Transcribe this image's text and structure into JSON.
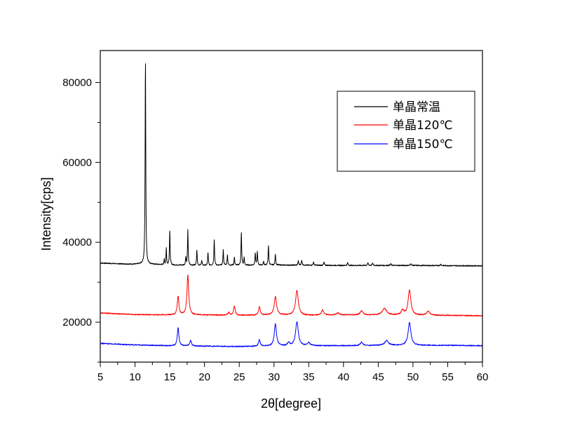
{
  "chart_data": {
    "type": "line",
    "title": "",
    "xlabel": "2θ[degree]",
    "ylabel": "Intensity[cps]",
    "xlim": [
      5,
      60
    ],
    "ylim": [
      10000,
      88000
    ],
    "xticks": [
      5,
      10,
      15,
      20,
      25,
      30,
      35,
      40,
      45,
      50,
      55,
      60
    ],
    "yticks": [
      20000,
      40000,
      60000,
      80000
    ],
    "grid": false,
    "legend_position": "upper-right",
    "series": [
      {
        "name": "单晶常温",
        "color": "#000000",
        "baseline": [
          [
            5,
            34800
          ],
          [
            8,
            34600
          ],
          [
            10,
            34500
          ],
          [
            11,
            34600
          ],
          [
            15,
            34300
          ],
          [
            20,
            34200
          ],
          [
            30,
            34300
          ],
          [
            40,
            34200
          ],
          [
            50,
            34200
          ],
          [
            60,
            34100
          ]
        ],
        "peaks": [
          {
            "x": 11.5,
            "y": 86500,
            "w": 0.08
          },
          {
            "x": 14.2,
            "y": 35700,
            "w": 0.07
          },
          {
            "x": 14.5,
            "y": 38700,
            "w": 0.07
          },
          {
            "x": 15.0,
            "y": 43000,
            "w": 0.08
          },
          {
            "x": 17.3,
            "y": 36300,
            "w": 0.07
          },
          {
            "x": 17.6,
            "y": 43000,
            "w": 0.08
          },
          {
            "x": 18.9,
            "y": 38200,
            "w": 0.08
          },
          {
            "x": 19.6,
            "y": 35500,
            "w": 0.08
          },
          {
            "x": 20.5,
            "y": 37500,
            "w": 0.08
          },
          {
            "x": 21.4,
            "y": 40800,
            "w": 0.08
          },
          {
            "x": 22.7,
            "y": 38100,
            "w": 0.08
          },
          {
            "x": 23.3,
            "y": 36900,
            "w": 0.08
          },
          {
            "x": 24.3,
            "y": 36300,
            "w": 0.08
          },
          {
            "x": 25.3,
            "y": 42600,
            "w": 0.08
          },
          {
            "x": 25.7,
            "y": 36300,
            "w": 0.07
          },
          {
            "x": 27.3,
            "y": 37400,
            "w": 0.08
          },
          {
            "x": 27.6,
            "y": 37700,
            "w": 0.08
          },
          {
            "x": 28.5,
            "y": 35200,
            "w": 0.08
          },
          {
            "x": 29.2,
            "y": 39300,
            "w": 0.08
          },
          {
            "x": 30.2,
            "y": 37100,
            "w": 0.08
          },
          {
            "x": 33.5,
            "y": 35300,
            "w": 0.1
          },
          {
            "x": 34.0,
            "y": 35500,
            "w": 0.1
          },
          {
            "x": 35.7,
            "y": 35000,
            "w": 0.1
          },
          {
            "x": 37.2,
            "y": 35000,
            "w": 0.1
          },
          {
            "x": 40.6,
            "y": 34900,
            "w": 0.1
          },
          {
            "x": 43.5,
            "y": 34800,
            "w": 0.12
          },
          {
            "x": 44.2,
            "y": 34700,
            "w": 0.12
          },
          {
            "x": 46.8,
            "y": 34600,
            "w": 0.12
          },
          {
            "x": 49.7,
            "y": 34600,
            "w": 0.12
          },
          {
            "x": 54.0,
            "y": 34500,
            "w": 0.12
          }
        ]
      },
      {
        "name": "单晶120℃",
        "color": "#ff0000",
        "baseline": [
          [
            5,
            22300
          ],
          [
            10,
            21900
          ],
          [
            15,
            21800
          ],
          [
            20,
            21800
          ],
          [
            25,
            21700
          ],
          [
            30,
            21800
          ],
          [
            35,
            21700
          ],
          [
            40,
            21800
          ],
          [
            45,
            21800
          ],
          [
            50,
            21700
          ],
          [
            55,
            21700
          ],
          [
            60,
            21600
          ]
        ],
        "peaks": [
          {
            "x": 16.2,
            "y": 26500,
            "w": 0.2
          },
          {
            "x": 17.6,
            "y": 31800,
            "w": 0.22
          },
          {
            "x": 23.5,
            "y": 22400,
            "w": 0.2
          },
          {
            "x": 24.3,
            "y": 23900,
            "w": 0.22
          },
          {
            "x": 27.9,
            "y": 23800,
            "w": 0.22
          },
          {
            "x": 30.2,
            "y": 26300,
            "w": 0.3
          },
          {
            "x": 33.3,
            "y": 27900,
            "w": 0.35
          },
          {
            "x": 37.0,
            "y": 23000,
            "w": 0.3
          },
          {
            "x": 39.2,
            "y": 22300,
            "w": 0.35
          },
          {
            "x": 42.6,
            "y": 22800,
            "w": 0.35
          },
          {
            "x": 45.9,
            "y": 23400,
            "w": 0.55
          },
          {
            "x": 48.5,
            "y": 22900,
            "w": 0.35
          },
          {
            "x": 49.5,
            "y": 28000,
            "w": 0.35
          },
          {
            "x": 52.2,
            "y": 22700,
            "w": 0.4
          }
        ]
      },
      {
        "name": "单晶150℃",
        "color": "#0000ff",
        "baseline": [
          [
            5,
            14700
          ],
          [
            10,
            14300
          ],
          [
            15,
            14100
          ],
          [
            20,
            14000
          ],
          [
            25,
            13900
          ],
          [
            30,
            14000
          ],
          [
            35,
            14100
          ],
          [
            40,
            14100
          ],
          [
            45,
            14200
          ],
          [
            50,
            14200
          ],
          [
            55,
            14200
          ],
          [
            60,
            14100
          ]
        ],
        "peaks": [
          {
            "x": 16.2,
            "y": 18600,
            "w": 0.2
          },
          {
            "x": 18.0,
            "y": 15400,
            "w": 0.2
          },
          {
            "x": 27.9,
            "y": 15600,
            "w": 0.22
          },
          {
            "x": 30.2,
            "y": 19500,
            "w": 0.28
          },
          {
            "x": 32.1,
            "y": 14900,
            "w": 0.25
          },
          {
            "x": 33.3,
            "y": 20100,
            "w": 0.35
          },
          {
            "x": 35.0,
            "y": 14900,
            "w": 0.3
          },
          {
            "x": 42.6,
            "y": 15000,
            "w": 0.3
          },
          {
            "x": 46.2,
            "y": 15400,
            "w": 0.45
          },
          {
            "x": 49.5,
            "y": 19900,
            "w": 0.35
          }
        ]
      }
    ]
  }
}
